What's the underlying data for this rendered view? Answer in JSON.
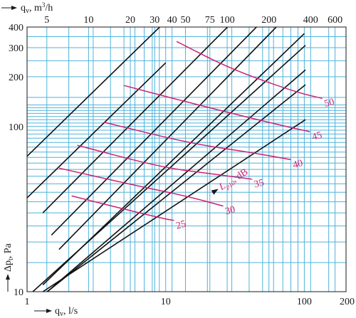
{
  "chart_data": {
    "type": "line",
    "x_scale": "log",
    "y_scale": "log",
    "xlim": [
      1,
      200
    ],
    "ylim": [
      10,
      400
    ],
    "grid": true,
    "xlabel": "q",
    "xlabel_sub": "v",
    "xlabel_unit": ", l/s",
    "ylabel": "Δp",
    "ylabel_sub": "t",
    "ylabel_unit": ", Pa",
    "top_axis_label": "q",
    "top_axis_sub": "v",
    "top_axis_unit": ", m",
    "top_axis_unit_sup": "3",
    "top_axis_unit_tail": "/h",
    "x_ticks": [
      1,
      10,
      100,
      200
    ],
    "x_tick_labels": [
      "1",
      "10",
      "100",
      "200"
    ],
    "y_ticks": [
      10,
      100,
      200,
      300,
      400
    ],
    "y_tick_labels": [
      "10",
      "100",
      "200",
      "300",
      "400"
    ],
    "top_ticks": [
      5,
      10,
      20,
      30,
      40,
      50,
      75,
      100,
      200,
      400,
      600
    ],
    "top_tick_labels": [
      "5",
      "10",
      "20",
      "30",
      "40",
      "50",
      "75",
      "100",
      "200",
      "400",
      "600"
    ],
    "x_grid": [
      2,
      3,
      4,
      5,
      6,
      7,
      8,
      9,
      20,
      30,
      40,
      50,
      60,
      70,
      80,
      90,
      150
    ],
    "y_grid": [
      15,
      20,
      25,
      30,
      35,
      40,
      45,
      50,
      55,
      60,
      65,
      70,
      75,
      80,
      85,
      90,
      95,
      105,
      110,
      115,
      120,
      125,
      130,
      135,
      150,
      250,
      350
    ],
    "pressure_lines": [
      {
        "points": [
          [
            1,
            66
          ],
          [
            10,
            434
          ]
        ]
      },
      {
        "points": [
          [
            1,
            37
          ],
          [
            10,
            243
          ]
        ]
      },
      {
        "points": [
          [
            1.3,
            30
          ],
          [
            30,
            425
          ]
        ]
      },
      {
        "points": [
          [
            1.5,
            22
          ],
          [
            48,
            421
          ]
        ]
      },
      {
        "points": [
          [
            1.7,
            18
          ],
          [
            65,
            412
          ]
        ]
      },
      {
        "points": [
          [
            1.3,
            11
          ],
          [
            100,
            365
          ]
        ]
      },
      {
        "points": [
          [
            1.1,
            10
          ],
          [
            102,
            310
          ]
        ]
      },
      {
        "points": [
          [
            1.4,
            10
          ],
          [
            102,
            220
          ]
        ]
      },
      {
        "points": [
          [
            1.4,
            10
          ],
          [
            102,
            179
          ]
        ]
      },
      {
        "points": [
          [
            1.3,
            10
          ],
          [
            102,
            110
          ]
        ]
      }
    ],
    "sound_level_unit": "dB",
    "sound_level_symbol": "L",
    "sound_level_sub": "p10",
    "sound_level_curves": [
      {
        "label": "25",
        "points": [
          [
            2.1,
            38
          ],
          [
            5.5,
            31
          ],
          [
            10,
            27.5
          ],
          [
            11.5,
            27
          ]
        ]
      },
      {
        "label": "30",
        "points": [
          [
            1.7,
            56
          ],
          [
            6,
            44
          ],
          [
            14,
            38
          ],
          [
            26,
            33
          ]
        ]
      },
      {
        "label": "35",
        "points": [
          [
            2.3,
            77
          ],
          [
            9,
            57
          ],
          [
            20,
            52
          ],
          [
            42,
            48
          ]
        ]
      },
      {
        "label": "40",
        "points": [
          [
            3.6,
            106
          ],
          [
            15,
            79
          ],
          [
            40,
            70
          ],
          [
            80,
            63
          ]
        ]
      },
      {
        "label": "45",
        "points": [
          [
            5,
            177
          ],
          [
            22,
            128
          ],
          [
            70,
            101
          ],
          [
            110,
            93
          ]
        ]
      },
      {
        "label": "50",
        "points": [
          [
            12,
            327
          ],
          [
            30,
            221
          ],
          [
            90,
            160
          ],
          [
            135,
            148
          ]
        ]
      }
    ]
  }
}
